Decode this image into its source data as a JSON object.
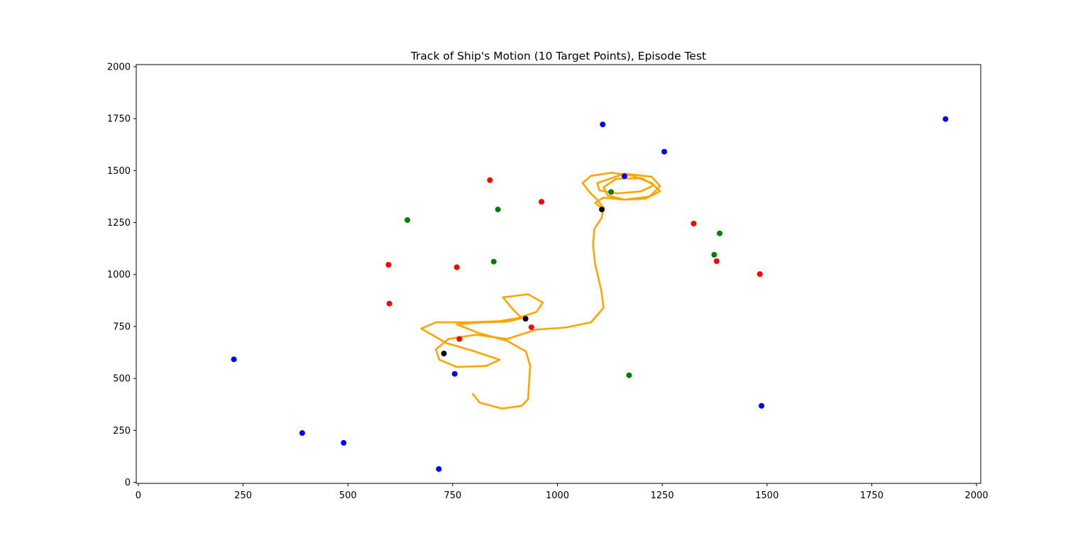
{
  "chart_data": {
    "type": "scatter",
    "title": "Track of Ship's Motion (10 Target Points), Episode Test",
    "xlabel": "",
    "ylabel": "",
    "xlim": [
      -5,
      2010
    ],
    "ylim": [
      -5,
      2010
    ],
    "x_ticks": [
      0,
      250,
      500,
      750,
      1000,
      1250,
      1500,
      1750,
      2000
    ],
    "y_ticks": [
      0,
      250,
      500,
      750,
      1000,
      1250,
      1500,
      1750,
      2000
    ],
    "grid": false,
    "legend": "none",
    "series": [
      {
        "color": "#0000ff",
        "kind": "points",
        "points": [
          [
            228,
            592
          ],
          [
            391,
            237
          ],
          [
            490,
            190
          ],
          [
            717,
            64
          ],
          [
            755,
            522
          ],
          [
            1108,
            1722
          ],
          [
            1160,
            1473
          ],
          [
            1255,
            1591
          ],
          [
            1487,
            368
          ],
          [
            1926,
            1748
          ]
        ]
      },
      {
        "color": "#ff0000",
        "kind": "points",
        "points": [
          [
            839,
            1454
          ],
          [
            962,
            1350
          ],
          [
            597,
            1047
          ],
          [
            760,
            1035
          ],
          [
            599,
            860
          ],
          [
            766,
            690
          ],
          [
            938,
            746
          ],
          [
            1325,
            1245
          ],
          [
            1380,
            1064
          ],
          [
            1483,
            1002
          ]
        ]
      },
      {
        "color": "#008000",
        "kind": "points",
        "points": [
          [
            642,
            1262
          ],
          [
            858,
            1313
          ],
          [
            848,
            1062
          ],
          [
            1128,
            1397
          ],
          [
            1387,
            1198
          ],
          [
            1374,
            1095
          ],
          [
            1171,
            515
          ]
        ]
      },
      {
        "color": "#000000",
        "kind": "points",
        "points": [
          [
            729,
            620
          ],
          [
            924,
            787
          ],
          [
            1106,
            1313
          ]
        ]
      },
      {
        "color": "#ffa500",
        "kind": "track",
        "points": [
          [
            798,
            425
          ],
          [
            815,
            383
          ],
          [
            868,
            355
          ],
          [
            915,
            368
          ],
          [
            930,
            400
          ],
          [
            932,
            470
          ],
          [
            935,
            560
          ],
          [
            925,
            630
          ],
          [
            880,
            680
          ],
          [
            810,
            720
          ],
          [
            760,
            760
          ],
          [
            820,
            770
          ],
          [
            880,
            773
          ],
          [
            915,
            790
          ],
          [
            895,
            830
          ],
          [
            870,
            890
          ],
          [
            930,
            905
          ],
          [
            965,
            865
          ],
          [
            950,
            820
          ],
          [
            905,
            790
          ],
          [
            860,
            775
          ],
          [
            790,
            770
          ],
          [
            710,
            770
          ],
          [
            675,
            740
          ],
          [
            735,
            670
          ],
          [
            795,
            635
          ],
          [
            862,
            590
          ],
          [
            830,
            560
          ],
          [
            760,
            555
          ],
          [
            718,
            590
          ],
          [
            710,
            640
          ],
          [
            740,
            690
          ],
          [
            805,
            710
          ],
          [
            880,
            690
          ],
          [
            950,
            735
          ],
          [
            1020,
            745
          ],
          [
            1080,
            770
          ],
          [
            1110,
            840
          ],
          [
            1105,
            920
          ],
          [
            1090,
            1050
          ],
          [
            1085,
            1140
          ],
          [
            1088,
            1220
          ],
          [
            1105,
            1270
          ],
          [
            1110,
            1320
          ],
          [
            1095,
            1360
          ],
          [
            1075,
            1400
          ],
          [
            1060,
            1440
          ],
          [
            1080,
            1475
          ],
          [
            1130,
            1490
          ],
          [
            1180,
            1475
          ],
          [
            1225,
            1440
          ],
          [
            1245,
            1400
          ],
          [
            1210,
            1365
          ],
          [
            1160,
            1360
          ],
          [
            1120,
            1380
          ],
          [
            1110,
            1420
          ],
          [
            1140,
            1460
          ],
          [
            1200,
            1465
          ],
          [
            1230,
            1430
          ],
          [
            1200,
            1400
          ],
          [
            1140,
            1390
          ],
          [
            1100,
            1405
          ],
          [
            1095,
            1440
          ],
          [
            1160,
            1485
          ],
          [
            1225,
            1470
          ],
          [
            1245,
            1425
          ],
          [
            1220,
            1375
          ],
          [
            1160,
            1360
          ],
          [
            1110,
            1370
          ],
          [
            1090,
            1345
          ],
          [
            1108,
            1315
          ]
        ]
      }
    ]
  }
}
